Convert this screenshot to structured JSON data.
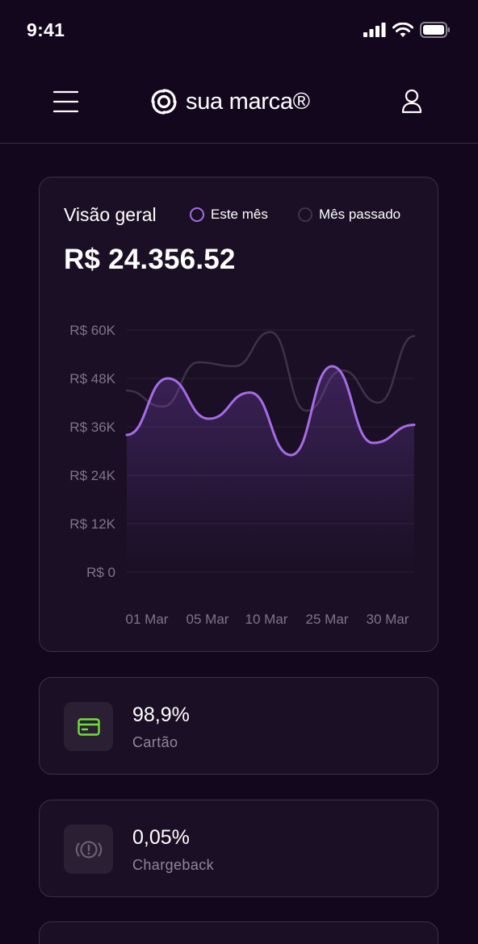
{
  "status_bar": {
    "time": "9:41"
  },
  "header": {
    "brand": "sua marca®"
  },
  "overview": {
    "title": "Visão geral",
    "legend": [
      {
        "label": "Este mês",
        "color": "#a66ce6",
        "active": true
      },
      {
        "label": "Mês passado",
        "color": "#3d3447",
        "active": false
      }
    ],
    "total": "R$ 24.356.52"
  },
  "chart_data": {
    "type": "line",
    "ylim": [
      0,
      60000
    ],
    "y_ticks": [
      "R$ 0",
      "R$ 12K",
      "R$ 24K",
      "R$ 36K",
      "R$ 48K",
      "R$ 60K"
    ],
    "x_tick_labels": [
      "01 Mar",
      "05 Mar",
      "10 Mar",
      "25 Mar",
      "30 Mar"
    ],
    "grid": true,
    "series": [
      {
        "name": "Este mês",
        "color": "#a66ce6",
        "values": [
          34000,
          48000,
          38000,
          44500,
          29000,
          51000,
          32000,
          36500
        ]
      },
      {
        "name": "Mês passado",
        "color": "#3f3149",
        "values": [
          45000,
          41000,
          52000,
          51000,
          59500,
          40000,
          50000,
          42000,
          58500
        ]
      }
    ]
  },
  "stats": [
    {
      "value": "98,9%",
      "label": "Cartão",
      "icon": "credit-card-icon",
      "icon_color": "#6fe03a"
    },
    {
      "value": "0,05%",
      "label": "Chargeback",
      "icon": "alert-circle-icon",
      "icon_color": "#6a5f73"
    }
  ]
}
